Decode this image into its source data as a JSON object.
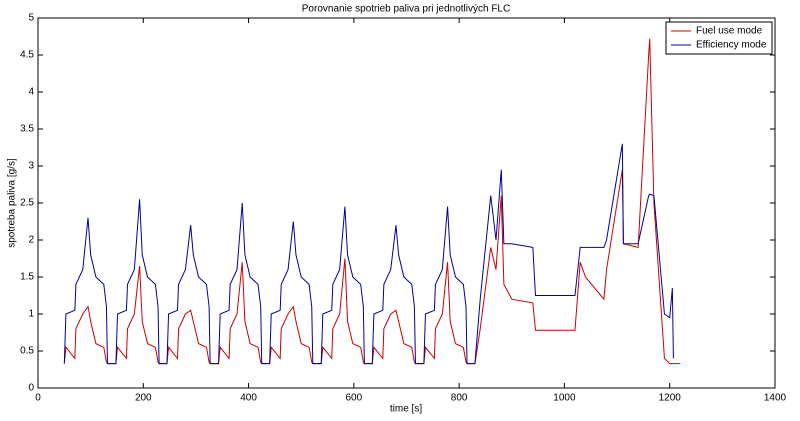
{
  "chart_data": {
    "type": "line",
    "title": "Porovnanie spotrieb paliva pri jednotlivých FLC",
    "x_label": "time [s]",
    "y_label": "spotreba paliva [g/s]",
    "legend": "top-right",
    "xlim": [
      0,
      1400
    ],
    "xticks": [
      0,
      200,
      400,
      600,
      800,
      1000,
      1200,
      1400
    ],
    "ylim": [
      0,
      5
    ],
    "yticks": [
      0,
      0.5,
      1,
      1.5,
      2,
      2.5,
      3,
      3.5,
      4,
      4.5,
      5
    ],
    "x": [
      50,
      53,
      70,
      72,
      85,
      95,
      100,
      110,
      125,
      130,
      132,
      148,
      151,
      168,
      170,
      183,
      193,
      198,
      208,
      223,
      228,
      230,
      245,
      248,
      265,
      267,
      280,
      290,
      295,
      305,
      320,
      325,
      327,
      343,
      346,
      363,
      365,
      378,
      388,
      393,
      403,
      418,
      423,
      425,
      440,
      443,
      460,
      462,
      475,
      485,
      490,
      500,
      515,
      520,
      522,
      538,
      541,
      558,
      560,
      573,
      583,
      588,
      598,
      613,
      618,
      620,
      635,
      638,
      655,
      657,
      670,
      680,
      685,
      695,
      710,
      715,
      717,
      733,
      736,
      753,
      755,
      768,
      778,
      783,
      793,
      808,
      813,
      815,
      830,
      840,
      860,
      870,
      880,
      885,
      900,
      940,
      945,
      1020,
      1030,
      1040,
      1075,
      1080,
      1110,
      1112,
      1140,
      1160,
      1162,
      1170,
      1190,
      1200,
      1205,
      1207,
      1220
    ],
    "series": [
      {
        "name": "Fuel use mode",
        "color": "#cc0000",
        "values": [
          0.33,
          0.55,
          0.4,
          0.8,
          1.0,
          1.1,
          0.9,
          0.6,
          0.55,
          0.35,
          0.33,
          0.33,
          0.55,
          0.4,
          0.8,
          1.0,
          1.65,
          0.9,
          0.6,
          0.55,
          0.35,
          0.33,
          0.33,
          0.55,
          0.4,
          0.8,
          1.0,
          1.05,
          0.9,
          0.6,
          0.55,
          0.35,
          0.33,
          0.33,
          0.55,
          0.4,
          0.8,
          1.0,
          1.7,
          0.9,
          0.6,
          0.55,
          0.35,
          0.33,
          0.33,
          0.55,
          0.4,
          0.8,
          1.0,
          1.1,
          0.9,
          0.6,
          0.55,
          0.35,
          0.33,
          0.33,
          0.55,
          0.4,
          0.8,
          1.0,
          1.75,
          0.9,
          0.6,
          0.55,
          0.35,
          0.33,
          0.33,
          0.55,
          0.4,
          0.8,
          1.0,
          1.05,
          0.9,
          0.6,
          0.55,
          0.35,
          0.33,
          0.33,
          0.55,
          0.4,
          0.8,
          1.0,
          1.7,
          0.9,
          0.6,
          0.55,
          0.35,
          0.33,
          0.33,
          0.8,
          1.9,
          1.6,
          2.6,
          1.4,
          1.2,
          1.15,
          0.78,
          0.78,
          1.7,
          1.5,
          1.2,
          1.6,
          2.95,
          1.95,
          1.9,
          4.5,
          4.72,
          2.5,
          0.4,
          0.33,
          0.33,
          0.33,
          0.33
        ]
      },
      {
        "name": "Efficiency mode",
        "color": "#000099",
        "values": [
          0.33,
          1.0,
          1.05,
          1.4,
          1.6,
          2.3,
          1.8,
          1.5,
          1.4,
          1.1,
          0.33,
          0.33,
          1.0,
          1.05,
          1.4,
          1.6,
          2.55,
          1.8,
          1.5,
          1.4,
          1.1,
          0.33,
          0.33,
          1.0,
          1.05,
          1.4,
          1.6,
          2.2,
          1.8,
          1.5,
          1.4,
          1.1,
          0.33,
          0.33,
          1.0,
          1.05,
          1.4,
          1.6,
          2.5,
          1.8,
          1.5,
          1.4,
          1.1,
          0.33,
          0.33,
          1.0,
          1.05,
          1.4,
          1.6,
          2.25,
          1.8,
          1.5,
          1.4,
          1.1,
          0.33,
          0.33,
          1.0,
          1.05,
          1.4,
          1.6,
          2.45,
          1.8,
          1.5,
          1.4,
          1.1,
          0.33,
          0.33,
          1.0,
          1.05,
          1.4,
          1.6,
          2.2,
          1.8,
          1.5,
          1.4,
          1.1,
          0.33,
          0.33,
          1.0,
          1.05,
          1.4,
          1.6,
          2.45,
          1.8,
          1.5,
          1.4,
          1.1,
          0.33,
          0.33,
          1.2,
          2.6,
          2.0,
          2.95,
          1.95,
          1.95,
          1.9,
          1.25,
          1.25,
          1.9,
          1.9,
          1.9,
          2.0,
          3.3,
          1.95,
          1.95,
          2.6,
          2.62,
          2.6,
          1.0,
          0.95,
          1.35,
          0.4,
          null
        ]
      }
    ]
  }
}
